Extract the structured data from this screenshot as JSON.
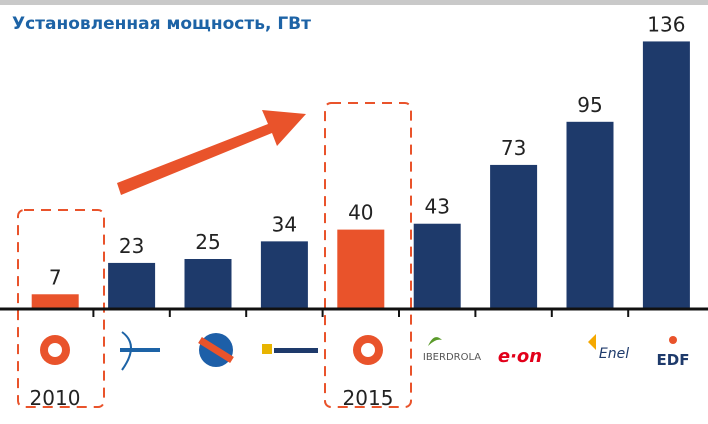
{
  "chart_data": {
    "type": "bar",
    "title": "Установленная мощность, ГВт",
    "categories": [
      null,
      null,
      null,
      null,
      null,
      "IBERDROLA",
      "e·on",
      "Enel",
      "EDF"
    ],
    "values": [
      7,
      23,
      25,
      34,
      40,
      43,
      73,
      95,
      136
    ],
    "colors": [
      "#e9532b",
      "#1e3a6b",
      "#1e3a6b",
      "#1e3a6b",
      "#e9532b",
      "#1e3a6b",
      "#1e3a6b",
      "#1e3a6b",
      "#1e3a6b"
    ],
    "annotations": [
      "2010",
      "2015"
    ]
  }
}
